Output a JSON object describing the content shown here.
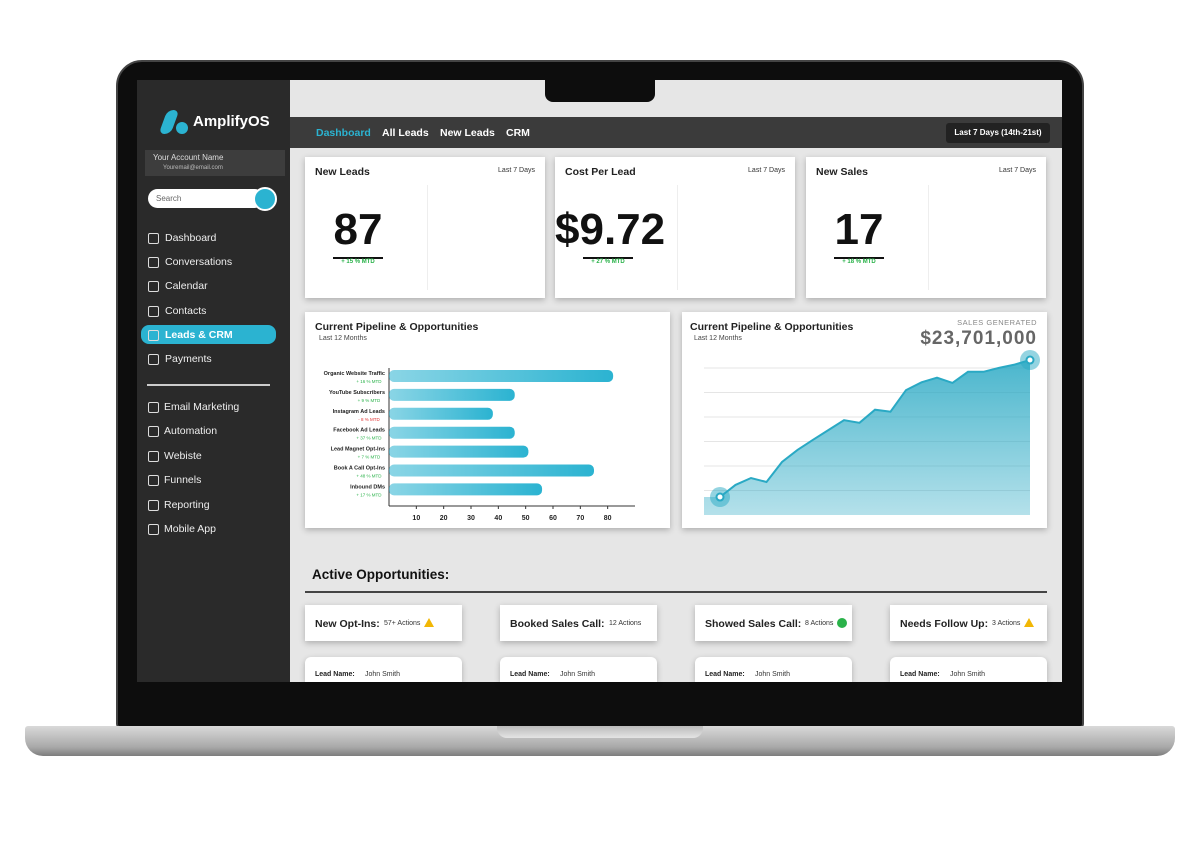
{
  "brand": "AmplifyOS",
  "account": {
    "name": "Your Account Name",
    "email": "Youremail@email.com"
  },
  "search": "Search",
  "menu": [
    "Dashboard",
    "Conversations",
    "Calendar",
    "Contacts",
    "Leads & CRM",
    "Payments"
  ],
  "active_menu": 4,
  "menu2": [
    "Email Marketing",
    "Automation",
    "Webiste",
    "Funnels",
    "Reporting",
    "Mobile App"
  ],
  "nav": [
    "Dashboard",
    "All Leads",
    "New Leads",
    "CRM"
  ],
  "date_range": "Last 7 Days (14th-21st)",
  "kpis": [
    {
      "title": "New Leads",
      "period": "Last 7 Days",
      "value": "87",
      "change": "+ 15 % MTD"
    },
    {
      "title": "Cost Per Lead",
      "period": "Last 7 Days",
      "value": "$9.72",
      "change": "+ 27 % MTD"
    },
    {
      "title": "New Sales",
      "period": "Last 7 Days",
      "value": "17",
      "change": "+ 18 % MTD"
    }
  ],
  "bar_chart": {
    "type": "bar",
    "title": "Current Pipeline & Opportunities",
    "subtitle": "Last 12 Months",
    "categories": [
      "Organic Website Traffic",
      "YouTube Subscribers",
      "Instagram Ad Leads",
      "Facebook Ad Leads",
      "Lead Magnet Opt-Ins",
      "Book A Call Opt-Ins",
      "Inbound DMs"
    ],
    "changes": [
      "+ 16 % MTD",
      "+ 9 % MTD",
      "- 8 % MTD",
      "+ 37 % MTD",
      "+ 7 % MTD",
      "+ 48 % MTD",
      "+ 17 % MTD"
    ],
    "change_trend": [
      "up",
      "up",
      "down",
      "up",
      "up",
      "up",
      "up"
    ],
    "values": [
      82,
      46,
      38,
      46,
      51,
      75,
      56
    ],
    "xlim": [
      0,
      90
    ],
    "xticks": [
      10,
      20,
      30,
      40,
      50,
      60,
      70,
      80
    ],
    "color": "#2bb3d1"
  },
  "line_chart": {
    "type": "area",
    "title": "Current Pipeline & Opportunities",
    "subtitle": "Last 12 Months",
    "kicker": "SALES GENERATED",
    "total": "$23,701,000",
    "values": [
      2750000,
      4600000,
      5660000,
      5050000,
      8100000,
      9950000,
      11500000,
      13000000,
      14500000,
      14100000,
      16100000,
      15800000,
      19100000,
      20300000,
      21000000,
      20200000,
      21900000,
      21900000,
      22500000,
      23000000,
      23701000
    ],
    "ylim": [
      0,
      26000000
    ],
    "color": "#2aa9c4"
  },
  "opportunities": {
    "title": "Active Opportunities:",
    "columns": [
      {
        "title": "New Opt-Ins:",
        "actions": "57+ Actions",
        "status": "warning",
        "lead_label": "Lead Name:",
        "lead": "John Smith"
      },
      {
        "title": "Booked Sales Call:",
        "actions": "12 Actions",
        "status": "none",
        "lead_label": "Lead Name:",
        "lead": "John Smith"
      },
      {
        "title": "Showed Sales Call:",
        "actions": "8 Actions",
        "status": "done",
        "lead_label": "Lead Name:",
        "lead": "John Smith"
      },
      {
        "title": "Needs Follow Up:",
        "actions": "3 Actions",
        "status": "warning",
        "lead_label": "Lead Name:",
        "lead": "John Smith"
      }
    ]
  }
}
